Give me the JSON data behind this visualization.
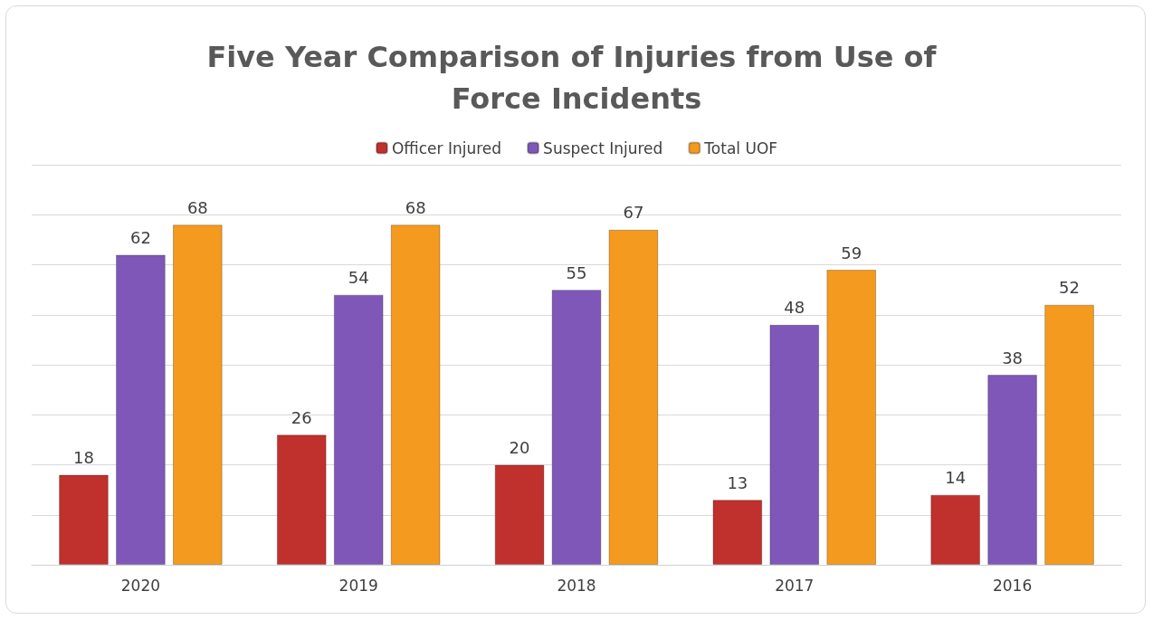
{
  "chart_data": {
    "type": "bar",
    "title": "Five Year Comparison of Injuries from Use of Force Incidents",
    "categories": [
      "2020",
      "2019",
      "2018",
      "2017",
      "2016"
    ],
    "series": [
      {
        "name": "Officer Injured",
        "color": "#c0302c",
        "values": [
          18,
          26,
          20,
          13,
          14
        ]
      },
      {
        "name": "Suspect Injured",
        "color": "#7e57b8",
        "values": [
          62,
          54,
          55,
          48,
          38
        ]
      },
      {
        "name": "Total UOF",
        "color": "#f39a1f",
        "values": [
          68,
          68,
          67,
          59,
          52
        ]
      }
    ],
    "ylim": [
      0,
      80
    ],
    "yticks": [
      {
        "value": 0,
        "label": null
      },
      {
        "value": 10,
        "label": null
      },
      {
        "value": 20,
        "label": null
      },
      {
        "value": 30,
        "label": null
      },
      {
        "value": 40,
        "label": null
      },
      {
        "value": 50,
        "label": null
      },
      {
        "value": 60,
        "label": null
      },
      {
        "value": 70,
        "label": null
      },
      {
        "value": 80,
        "label": null
      }
    ],
    "tick_labels": "x",
    "grid": "y",
    "legend": "top",
    "data_labels": true
  }
}
